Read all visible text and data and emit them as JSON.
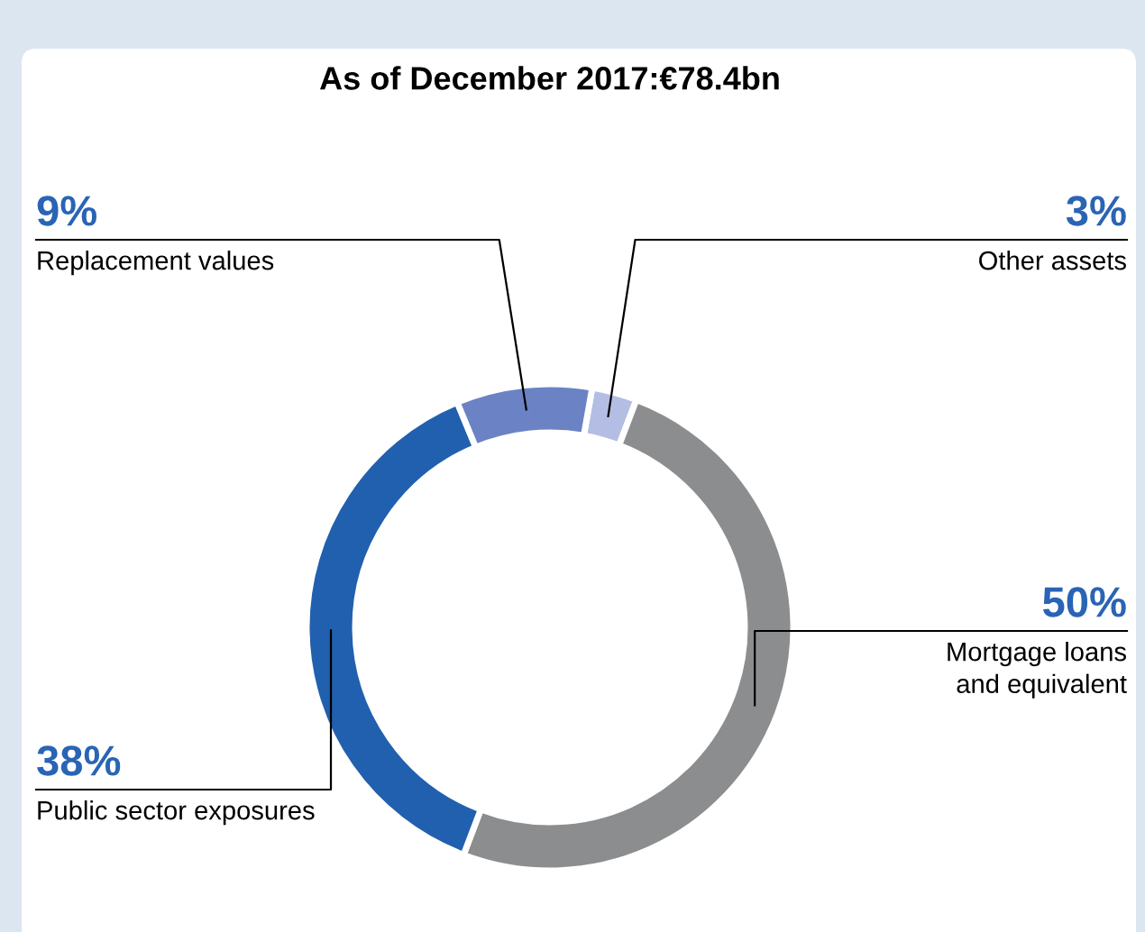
{
  "chart_data": {
    "type": "donut",
    "title": "As of December 2017:€78.4bn",
    "categories": [
      "Other assets",
      "Mortgage loans\nand equivalent",
      "Public sector exposures",
      "Replacement values"
    ],
    "values": [
      3,
      50,
      38,
      9
    ],
    "value_labels": [
      "3%",
      "50%",
      "38%",
      "9%"
    ],
    "colors": [
      "#b4bde4",
      "#8c8d8f",
      "#2160ae",
      "#6b83c4"
    ],
    "legend": false
  }
}
